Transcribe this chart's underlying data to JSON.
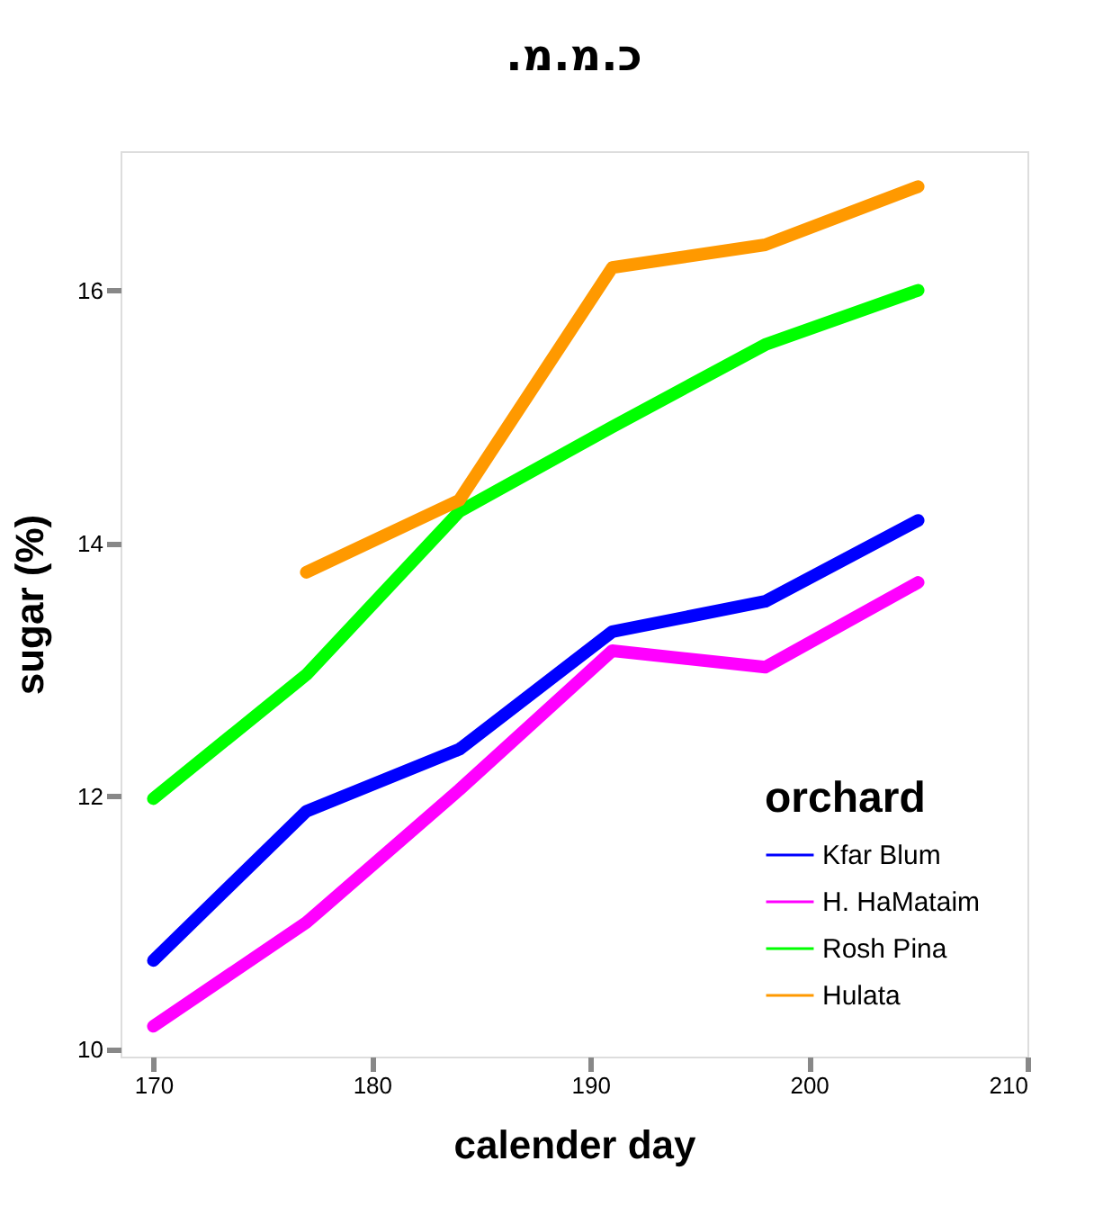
{
  "chart_data": {
    "type": "line",
    "title": "כ.מ.מ.",
    "xlabel": "calender day",
    "ylabel": "sugar (%)",
    "legend_title": "orchard",
    "x": [
      170,
      177,
      184,
      191,
      198,
      205
    ],
    "series": [
      {
        "name": "Kfar Blum",
        "color": "#0000ff",
        "values": [
          10.7,
          11.88,
          12.37,
          13.3,
          13.54,
          14.18
        ]
      },
      {
        "name": "H. HaMataim",
        "color": "#ff00ff",
        "values": [
          10.18,
          11.0,
          12.05,
          13.15,
          13.02,
          13.69
        ]
      },
      {
        "name": "Rosh Pina",
        "color": "#00ff00",
        "values": [
          11.98,
          12.96,
          14.25,
          14.92,
          15.57,
          16.0
        ]
      },
      {
        "name": "Hulata",
        "color": "#ff9900",
        "values": [
          null,
          13.77,
          14.34,
          16.18,
          16.36,
          16.82
        ]
      }
    ],
    "xlim": [
      168.5,
      210
    ],
    "xticks": [
      170,
      180,
      190,
      200,
      210
    ],
    "ylim": [
      9.94,
      17.1
    ],
    "yticks": [
      10,
      12,
      14,
      16
    ],
    "grid": false,
    "legend": "bottom right",
    "line_style": "solid",
    "marker": "none"
  }
}
